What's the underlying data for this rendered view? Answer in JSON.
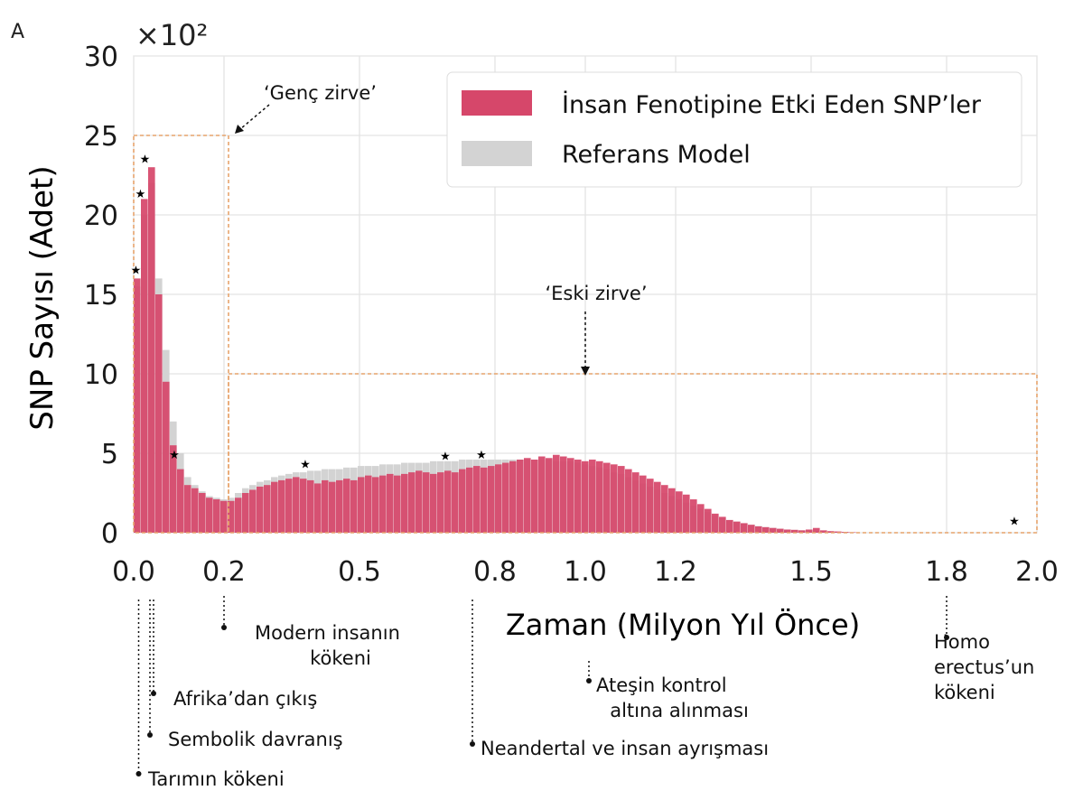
{
  "panel_letter": "A",
  "chart_data": {
    "type": "bar",
    "xlabel": "Zaman (Milyon Yıl Önce)",
    "ylabel": "SNP Sayısı (Adet)",
    "y_multiplier": "×10²",
    "xlim": [
      0,
      2.0
    ],
    "ylim": [
      0,
      30
    ],
    "x_tick_values": [
      0.0,
      0.2,
      0.5,
      0.8,
      1.0,
      1.2,
      1.5,
      1.8,
      2.0
    ],
    "x_tick_labels": [
      "0.0",
      "0.2",
      "0.5",
      "0.8",
      "1.0",
      "1.2",
      "1.5",
      "1.8",
      "2.0"
    ],
    "y_tick_values": [
      0,
      5,
      10,
      15,
      20,
      25,
      30
    ],
    "y_tick_labels": [
      "0",
      "5",
      "10",
      "15",
      "20",
      "25",
      "30"
    ],
    "grid": true,
    "legend_position": "top-right",
    "bin_width": 0.016,
    "series": [
      {
        "name": "İnsan Fenotipine Etki Eden SNP’ler",
        "color": "#d6476a",
        "values": [
          16,
          21,
          23,
          15,
          9.5,
          5.5,
          4,
          3,
          2.8,
          2.5,
          2.2,
          2.1,
          2.0,
          2.0,
          2.2,
          2.5,
          2.7,
          2.9,
          3.0,
          3.2,
          3.3,
          3.4,
          3.5,
          3.4,
          3.3,
          3.1,
          3.3,
          3.2,
          3.3,
          3.4,
          3.3,
          3.5,
          3.6,
          3.5,
          3.6,
          3.7,
          3.6,
          3.7,
          3.8,
          3.9,
          3.8,
          3.7,
          3.8,
          3.9,
          3.8,
          4.0,
          4.1,
          4.2,
          4.1,
          4.2,
          4.3,
          4.4,
          4.5,
          4.6,
          4.7,
          4.6,
          4.8,
          4.7,
          4.9,
          4.8,
          4.7,
          4.6,
          4.5,
          4.6,
          4.5,
          4.4,
          4.3,
          4.2,
          4.0,
          3.8,
          3.6,
          3.4,
          3.2,
          3.0,
          2.8,
          2.6,
          2.4,
          2.1,
          1.8,
          1.5,
          1.2,
          1.0,
          0.8,
          0.7,
          0.6,
          0.5,
          0.4,
          0.35,
          0.3,
          0.25,
          0.2,
          0.18,
          0.15,
          0.2,
          0.3,
          0.15,
          0.1,
          0.08,
          0.05,
          0.03
        ]
      },
      {
        "name": "Referans Model",
        "color": "#d3d3d3",
        "values": [
          15.5,
          20,
          22,
          16,
          11.5,
          7,
          5,
          3.5,
          3,
          2.6,
          2.3,
          2.2,
          2.1,
          2.2,
          2.5,
          2.8,
          3.0,
          3.2,
          3.3,
          3.5,
          3.6,
          3.7,
          3.8,
          3.8,
          3.9,
          3.9,
          4.0,
          4.0,
          4.0,
          4.1,
          4.1,
          4.2,
          4.2,
          4.2,
          4.3,
          4.3,
          4.3,
          4.4,
          4.4,
          4.4,
          4.4,
          4.5,
          4.5,
          4.5,
          4.5,
          4.6,
          4.6,
          4.6,
          4.6,
          4.6,
          4.6,
          4.6,
          4.6,
          4.6,
          4.6,
          4.6,
          4.6,
          4.6,
          4.5,
          4.5,
          4.5,
          4.4,
          4.3,
          4.2,
          4.1,
          4.0,
          3.8,
          3.7,
          3.5,
          3.3,
          3.1,
          2.9,
          2.7,
          2.5,
          2.3,
          2.1,
          1.9,
          1.7,
          1.5,
          1.3,
          1.1,
          0.95,
          0.8,
          0.7,
          0.6,
          0.5,
          0.42,
          0.35,
          0.3,
          0.25,
          0.2,
          0.18,
          0.15,
          0.13,
          0.12,
          0.1,
          0.08,
          0.06,
          0.05,
          0.03
        ]
      }
    ],
    "significance_markers": [
      {
        "x": 0.005,
        "y": 16.5
      },
      {
        "x": 0.015,
        "y": 21.3
      },
      {
        "x": 0.025,
        "y": 23.5
      },
      {
        "x": 0.09,
        "y": 4.9
      },
      {
        "x": 0.38,
        "y": 4.3
      },
      {
        "x": 0.69,
        "y": 4.8
      },
      {
        "x": 0.77,
        "y": 4.9
      },
      {
        "x": 1.95,
        "y": 0.7
      }
    ],
    "annotations": [
      {
        "label": "‘Genç zirve’",
        "box_x": [
          0,
          0.21
        ],
        "box_y": [
          0,
          25
        ]
      },
      {
        "label": "‘Eski zirve’",
        "box_x": [
          0.21,
          2.0
        ],
        "box_y": [
          0,
          10
        ]
      }
    ],
    "events": [
      {
        "x": 0.003,
        "lines": [
          "Tarımın kökeni"
        ]
      },
      {
        "x": 0.03,
        "lines": [
          "Sembolik davranış"
        ]
      },
      {
        "x": 0.04,
        "lines": [
          "Afrika’dan çıkış"
        ]
      },
      {
        "x": 0.2,
        "lines": [
          "Modern insanın",
          "kökeni"
        ]
      },
      {
        "x": 0.76,
        "lines": [
          "Neandertal ve insan ayrışması"
        ]
      },
      {
        "x": 1.0,
        "lines": [
          "Ateşin kontrol",
          "altına alınması"
        ]
      },
      {
        "x": 1.8,
        "lines": [
          "Homo",
          "erectus’un",
          "kökeni"
        ]
      }
    ]
  }
}
